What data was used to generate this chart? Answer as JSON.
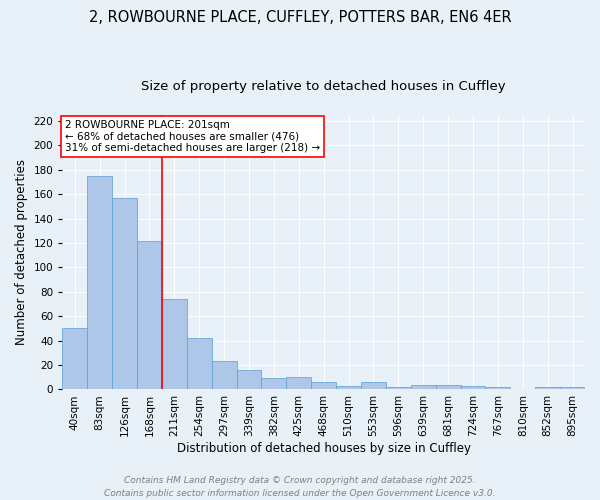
{
  "title_line1": "2, ROWBOURNE PLACE, CUFFLEY, POTTERS BAR, EN6 4ER",
  "title_line2": "Size of property relative to detached houses in Cuffley",
  "xlabel": "Distribution of detached houses by size in Cuffley",
  "ylabel": "Number of detached properties",
  "bar_labels": [
    "40sqm",
    "83sqm",
    "126sqm",
    "168sqm",
    "211sqm",
    "254sqm",
    "297sqm",
    "339sqm",
    "382sqm",
    "425sqm",
    "468sqm",
    "510sqm",
    "553sqm",
    "596sqm",
    "639sqm",
    "681sqm",
    "724sqm",
    "767sqm",
    "810sqm",
    "852sqm",
    "895sqm"
  ],
  "bar_values": [
    50,
    175,
    157,
    122,
    74,
    42,
    23,
    16,
    9,
    10,
    6,
    3,
    6,
    2,
    4,
    4,
    3,
    2,
    0,
    2,
    2
  ],
  "bar_color": "#aec6e8",
  "bar_edge_color": "#5a9fd4",
  "background_color": "#e8f0f8",
  "vline_color": "red",
  "annotation_text": "2 ROWBOURNE PLACE: 201sqm\n← 68% of detached houses are smaller (476)\n31% of semi-detached houses are larger (218) →",
  "annotation_box_color": "white",
  "annotation_box_edge_color": "red",
  "ylim": [
    0,
    225
  ],
  "yticks": [
    0,
    20,
    40,
    60,
    80,
    100,
    120,
    140,
    160,
    180,
    200,
    220
  ],
  "footer_line1": "Contains HM Land Registry data © Crown copyright and database right 2025.",
  "footer_line2": "Contains public sector information licensed under the Open Government Licence v3.0.",
  "title_fontsize": 10.5,
  "subtitle_fontsize": 9.5,
  "axis_label_fontsize": 8.5,
  "tick_fontsize": 7.5,
  "annotation_fontsize": 7.5,
  "footer_fontsize": 6.5
}
